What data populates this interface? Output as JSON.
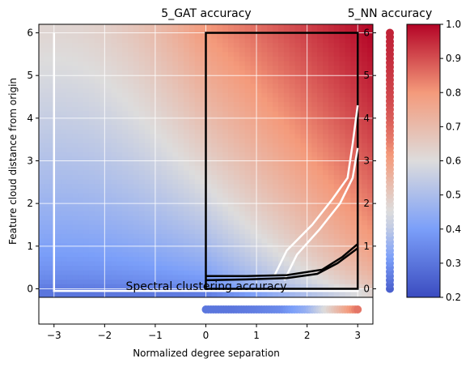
{
  "chart_data": [
    {
      "type": "heatmap",
      "title": "5_GAT accuracy",
      "xlabel": "Normalized degree separation",
      "ylabel": "Feature cloud distance from origin",
      "xlim": [
        -3.3,
        3.3
      ],
      "ylim": [
        -0.2,
        6.2
      ],
      "x_ticks": [
        "−3",
        "−2",
        "−1",
        "0",
        "1",
        "2",
        "3"
      ],
      "y_ticks": [
        "0",
        "1",
        "2",
        "3",
        "4",
        "5",
        "6"
      ],
      "grid": true,
      "value_range": [
        0.2,
        1.0
      ],
      "corner_values": {
        "x=-3,y=0": 0.3,
        "x=-3,y=6": 0.62,
        "x=0,y=0": 0.32,
        "x=0,y=6": 0.8,
        "x=3,y=0": 0.6,
        "x=3,y=6": 0.98
      },
      "white_contour": [
        [
          -3,
          6
        ],
        [
          -3,
          -0.05
        ],
        [
          3,
          -0.05
        ],
        [
          3,
          6
        ]
      ],
      "black_box": {
        "x": [
          0,
          3
        ],
        "y": [
          0,
          6
        ]
      }
    },
    {
      "type": "scatter",
      "title": "5_NN accuracy",
      "description_axis": "vertical strip",
      "y_ticks": [
        "0",
        "1",
        "2",
        "3",
        "4",
        "5",
        "6"
      ],
      "y": [
        0,
        0.5,
        1,
        1.5,
        2,
        2.5,
        3,
        3.5,
        4,
        4.5,
        5,
        5.5,
        6
      ],
      "values": [
        0.25,
        0.35,
        0.45,
        0.55,
        0.62,
        0.7,
        0.78,
        0.84,
        0.88,
        0.91,
        0.93,
        0.95,
        0.96
      ]
    },
    {
      "type": "scatter",
      "title": "Spectral clustering accuracy",
      "description_axis": "horizontal strip",
      "x": [
        0,
        0.5,
        1,
        1.5,
        2,
        2.5,
        3
      ],
      "values": [
        0.3,
        0.3,
        0.32,
        0.35,
        0.45,
        0.65,
        0.85
      ]
    },
    {
      "type": "colorbar",
      "ticks": [
        "0.2",
        "0.3",
        "0.4",
        "0.5",
        "0.6",
        "0.7",
        "0.8",
        "0.9",
        "1.0"
      ],
      "colormap": "coolwarm"
    }
  ]
}
